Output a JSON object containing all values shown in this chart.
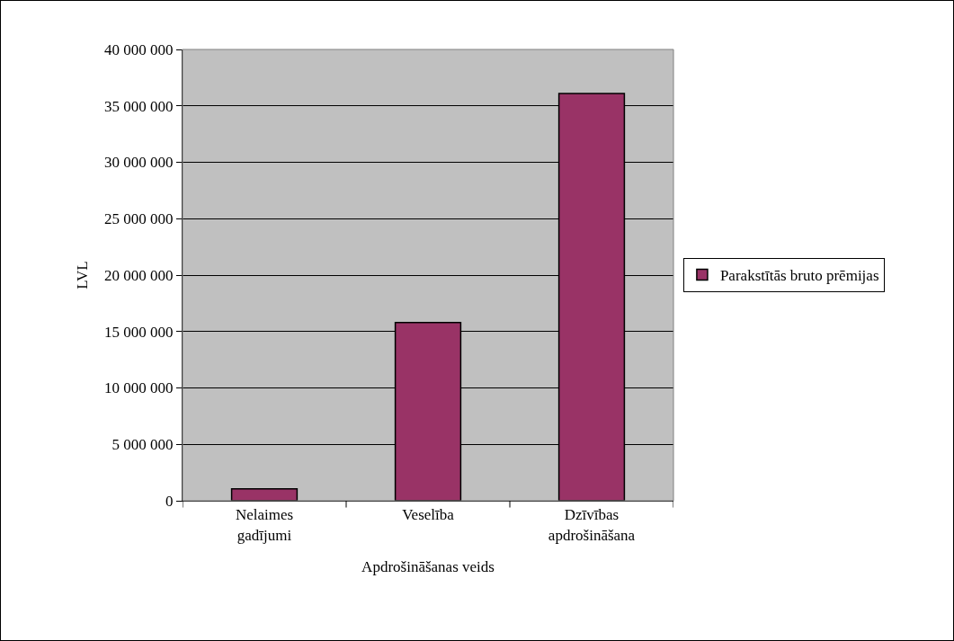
{
  "chart_data": {
    "type": "bar",
    "xlabel": "Apdrošināšanas veids",
    "ylabel": "LVL",
    "categories": [
      "Nelaimes gadījumi",
      "Veselība",
      "Dzīvības apdrošināšana"
    ],
    "series": [
      {
        "name": "Parakstītās bruto prēmijas",
        "color": "#993366",
        "values": [
          1050000,
          15800000,
          36100000
        ]
      }
    ],
    "ylim": [
      0,
      40000000
    ],
    "yticks": [
      {
        "value": 0,
        "label": "0"
      },
      {
        "value": 5000000,
        "label": "5 000 000"
      },
      {
        "value": 10000000,
        "label": "10 000 000"
      },
      {
        "value": 15000000,
        "label": "15 000 000"
      },
      {
        "value": 20000000,
        "label": "20 000 000"
      },
      {
        "value": 25000000,
        "label": "25 000 000"
      },
      {
        "value": 30000000,
        "label": "30 000 000"
      },
      {
        "value": 35000000,
        "label": "35 000 000"
      },
      {
        "value": 40000000,
        "label": "40 000 000"
      }
    ],
    "grid": "y",
    "legend": "right"
  }
}
